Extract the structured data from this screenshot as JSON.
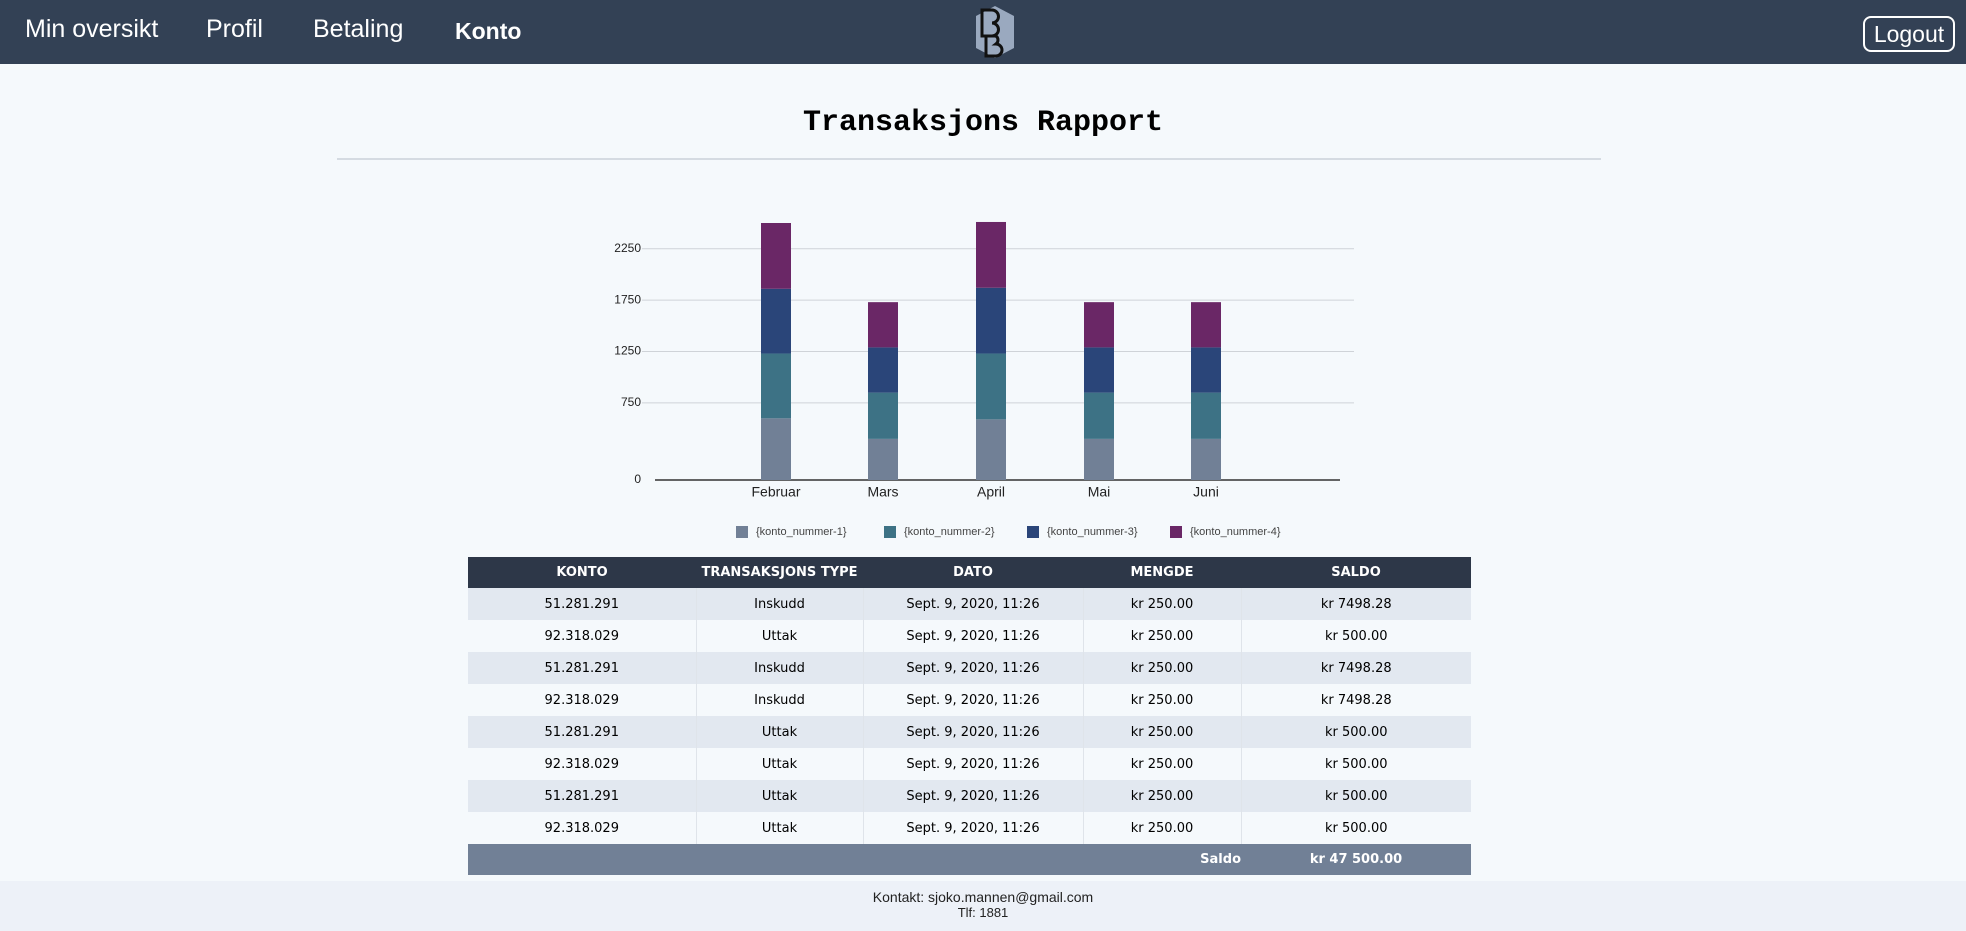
{
  "nav": {
    "links": [
      "Min oversikt",
      "Profil",
      "Betaling",
      "Konto"
    ],
    "logout": "Logout"
  },
  "title": "Transaksjons Rapport",
  "chart_data": {
    "type": "bar",
    "stacked": true,
    "categories": [
      "Februar",
      "Mars",
      "April",
      "Mai",
      "Juni"
    ],
    "series": [
      {
        "name": "{konto_nummer-1}",
        "color": "#718096",
        "values": [
          600,
          400,
          590,
          400,
          400
        ]
      },
      {
        "name": "{konto_nummer-2}",
        "color": "#3d7285",
        "values": [
          630,
          450,
          640,
          450,
          450
        ]
      },
      {
        "name": "{konto_nummer-3}",
        "color": "#2a4579",
        "values": [
          630,
          440,
          640,
          440,
          440
        ]
      },
      {
        "name": "{konto_nummer-4}",
        "color": "#6a2766",
        "values": [
          640,
          440,
          640,
          440,
          440
        ]
      }
    ],
    "ylim": [
      0,
      2500
    ],
    "yticks": [
      0,
      750,
      1250,
      1750,
      2250
    ],
    "grid": true,
    "legend": "bottom"
  },
  "table": {
    "headers": [
      "KONTO",
      "TRANSAKSJONS TYPE",
      "DATO",
      "MENGDE",
      "SALDO"
    ],
    "rows": [
      [
        "51.281.291",
        "Inskudd",
        "Sept. 9, 2020, 11:26",
        "kr 250.00",
        "kr 7498.28"
      ],
      [
        "92.318.029",
        "Uttak",
        "Sept. 9, 2020, 11:26",
        "kr 250.00",
        "kr 500.00"
      ],
      [
        "51.281.291",
        "Inskudd",
        "Sept. 9, 2020, 11:26",
        "kr 250.00",
        "kr 7498.28"
      ],
      [
        "92.318.029",
        "Inskudd",
        "Sept. 9, 2020, 11:26",
        "kr 250.00",
        "kr 7498.28"
      ],
      [
        "51.281.291",
        "Uttak",
        "Sept. 9, 2020, 11:26",
        "kr 250.00",
        "kr 500.00"
      ],
      [
        "92.318.029",
        "Uttak",
        "Sept. 9, 2020, 11:26",
        "kr 250.00",
        "kr 500.00"
      ],
      [
        "51.281.291",
        "Uttak",
        "Sept. 9, 2020, 11:26",
        "kr 250.00",
        "kr 500.00"
      ],
      [
        "92.318.029",
        "Uttak",
        "Sept. 9, 2020, 11:26",
        "kr 250.00",
        "kr 500.00"
      ]
    ],
    "footer": {
      "label": "Saldo",
      "value": "kr 47 500.00"
    }
  },
  "footer": {
    "contact": "Kontakt: sjoko.mannen@gmail.com",
    "phone": "Tlf: 1881"
  }
}
